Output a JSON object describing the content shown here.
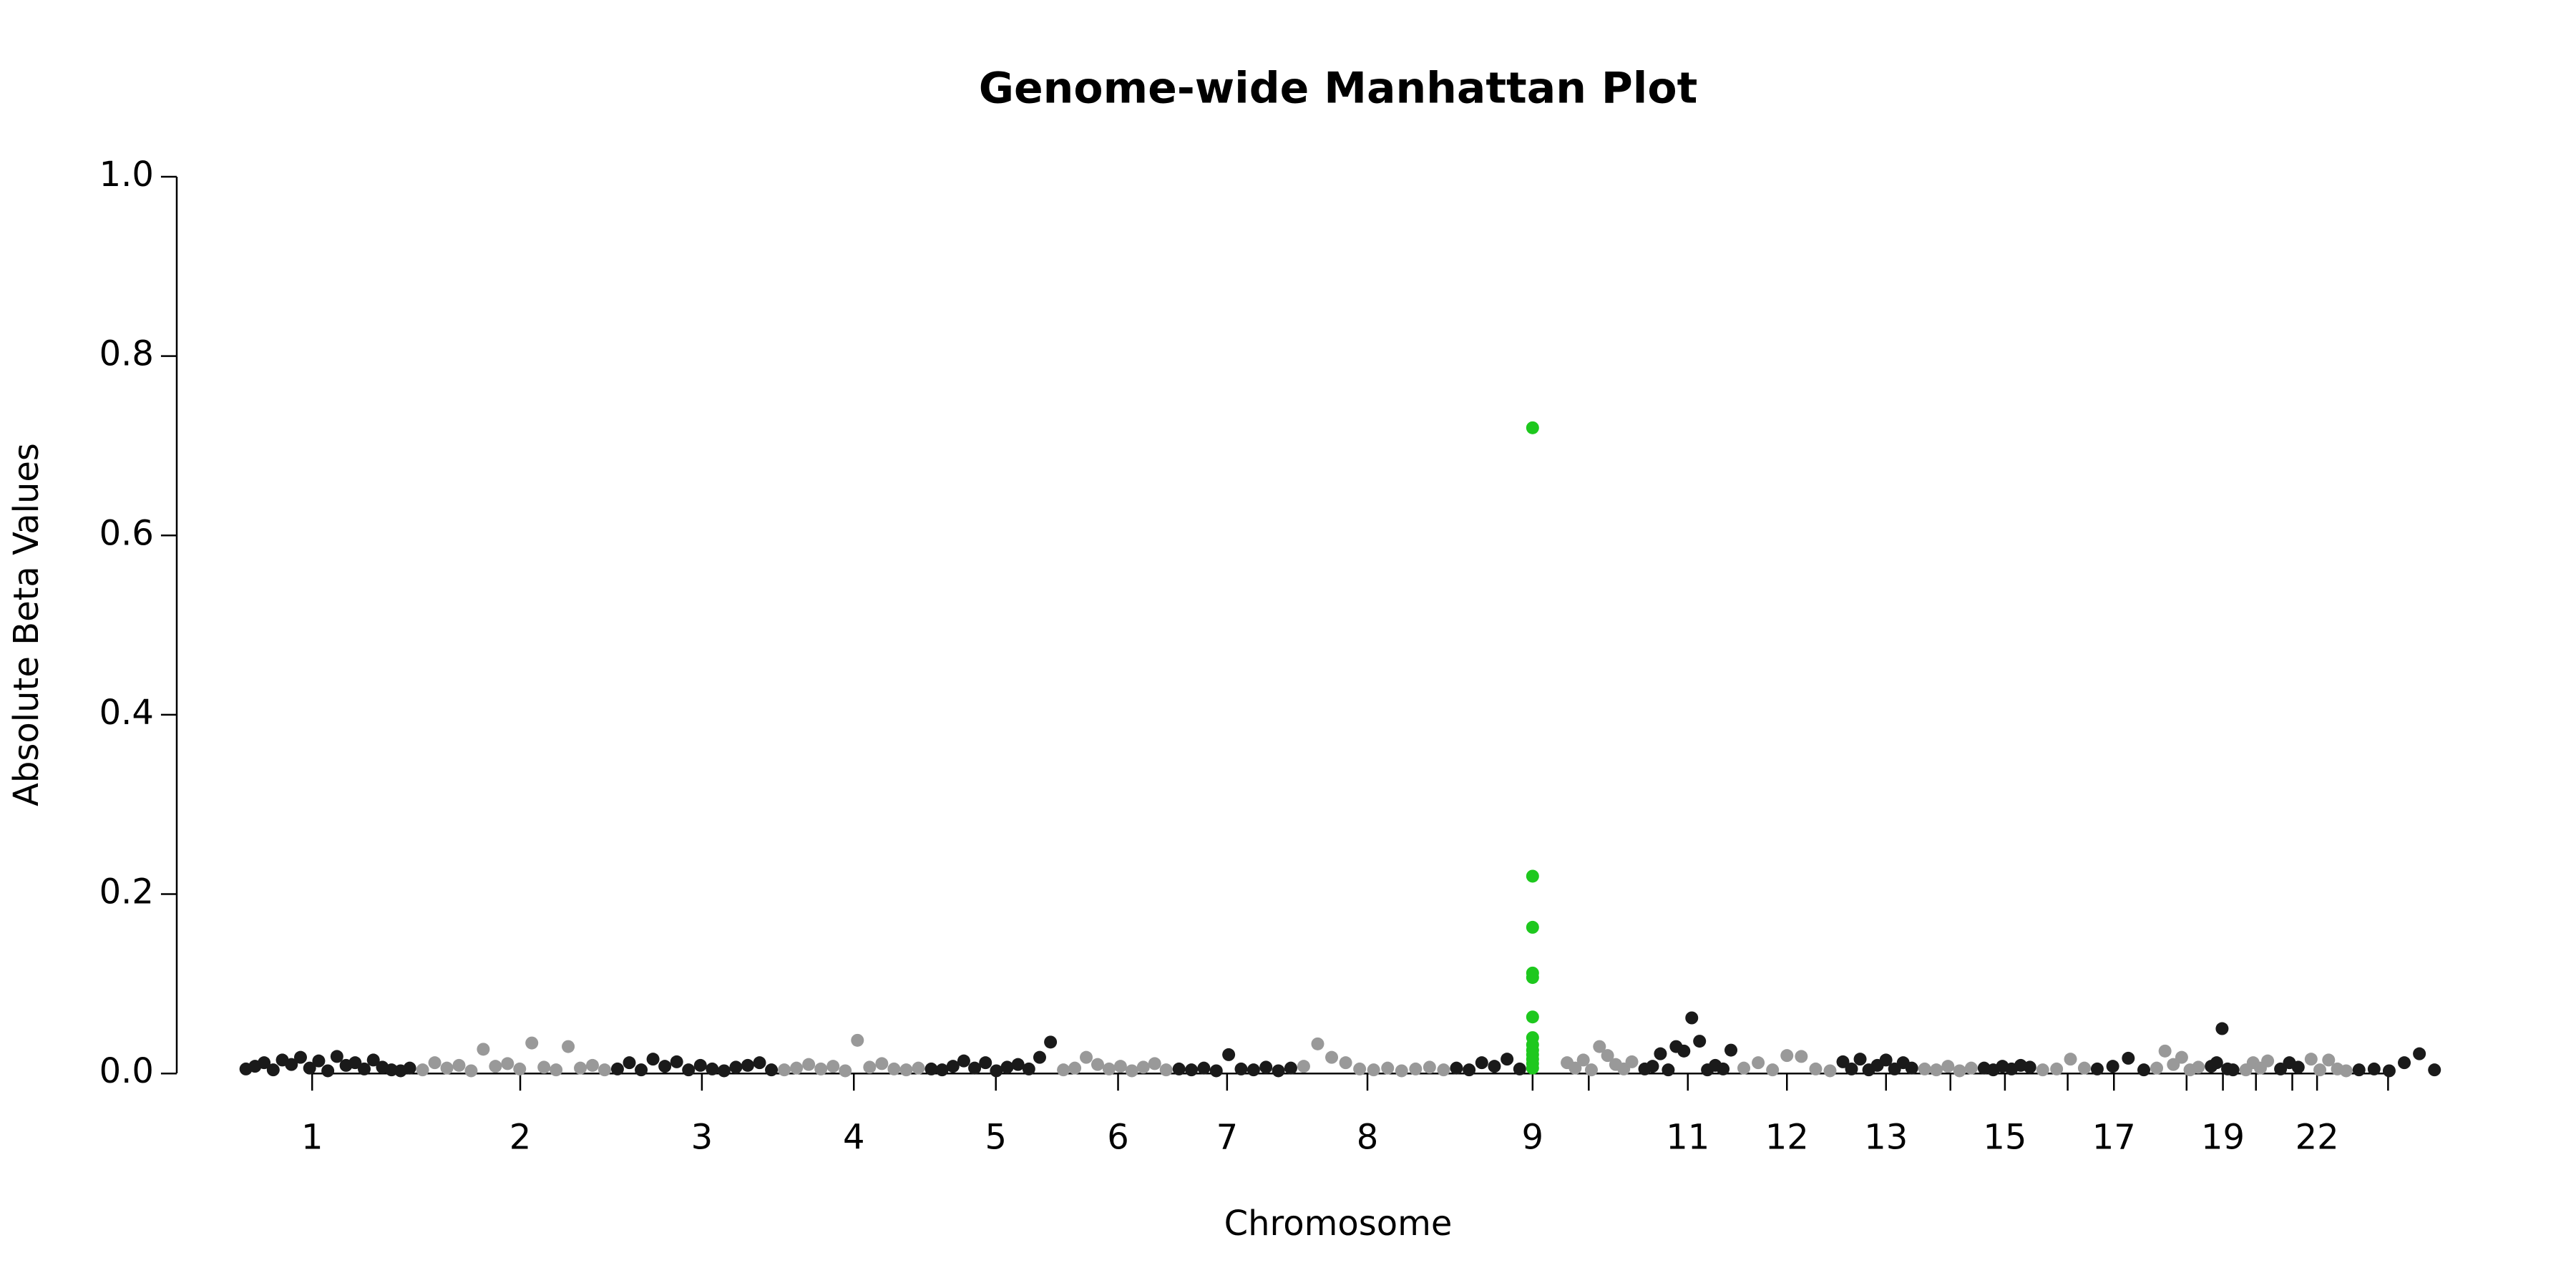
{
  "chart_data": {
    "type": "scatter",
    "title": "Genome-wide Manhattan Plot",
    "xlabel": "Chromosome",
    "ylabel": "Absolute Beta Values",
    "categories": [
      "1",
      "2",
      "3",
      "4",
      "5",
      "6",
      "7",
      "8",
      "9",
      null,
      "11",
      "12",
      "13",
      null,
      "15",
      null,
      "17",
      null,
      "19",
      null,
      null,
      "22",
      null
    ],
    "colors": [
      "#1a1a1a",
      "#999999"
    ],
    "values": [
      [
        0.005,
        0.008,
        0.012,
        0.004,
        0.015,
        0.01,
        0.018,
        0.006,
        0.014,
        0.003,
        0.019,
        0.009,
        0.012,
        0.005,
        0.015,
        0.007,
        0.004,
        0.003,
        0.006
      ],
      [
        0.004,
        0.012,
        0.006,
        0.009,
        0.003,
        0.027,
        0.008,
        0.011,
        0.005,
        0.034,
        0.007,
        0.004,
        0.03,
        0.006,
        0.009,
        0.004
      ],
      [
        0.005,
        0.012,
        0.004,
        0.016,
        0.008,
        0.013,
        0.004,
        0.009,
        0.005,
        0.003,
        0.007,
        0.009,
        0.012,
        0.004
      ],
      [
        0.004,
        0.006,
        0.01,
        0.005,
        0.008,
        0.003,
        0.037,
        0.007,
        0.011,
        0.005,
        0.004,
        0.006
      ],
      [
        0.005,
        0.004,
        0.008,
        0.014,
        0.006,
        0.012,
        0.003,
        0.007,
        0.01,
        0.005,
        0.018,
        0.035
      ],
      [
        0.004,
        0.006,
        0.018,
        0.01,
        0.005,
        0.008,
        0.003,
        0.007,
        0.011,
        0.004
      ],
      [
        0.005,
        0.004,
        0.006,
        0.003,
        0.021,
        0.005,
        0.004,
        0.007,
        0.003,
        0.006
      ],
      [
        0.008,
        0.033,
        0.018,
        0.012,
        0.005,
        0.004,
        0.006,
        0.003,
        0.005,
        0.007,
        0.004
      ],
      [
        0.006,
        0.004,
        0.012,
        0.008,
        0.016,
        0.005
      ],
      [
        0.012,
        0.006,
        0.015,
        0.004,
        0.03,
        0.02,
        0.01,
        0.005,
        0.013
      ],
      [
        0.005,
        0.008,
        0.022,
        0.004,
        0.03,
        0.025,
        0.062,
        0.036,
        0.004,
        0.009,
        0.005,
        0.026
      ],
      [
        0.006,
        0.012,
        0.004,
        0.02,
        0.019,
        0.005,
        0.003
      ],
      [
        0.013,
        0.005,
        0.016,
        0.004,
        0.009,
        0.015,
        0.005,
        0.012,
        0.006
      ],
      [
        0.005,
        0.004,
        0.008,
        0.003,
        0.006
      ],
      [
        0.006,
        0.004,
        0.008,
        0.005,
        0.009,
        0.007
      ],
      [
        0.004,
        0.005,
        0.016,
        0.006
      ],
      [
        0.005,
        0.008,
        0.017,
        0.004
      ],
      [
        0.006,
        0.025,
        0.01,
        0.018,
        0.004,
        0.007
      ],
      [
        0.008,
        0.012,
        0.05,
        0.005,
        0.004
      ],
      [
        0.004,
        0.012,
        0.006,
        0.014
      ],
      [
        0.005,
        0.012,
        0.007
      ],
      [
        0.016,
        0.004,
        0.015,
        0.005,
        0.003
      ],
      [
        0.004,
        0.005,
        0.003,
        0.012,
        0.022,
        0.004
      ]
    ],
    "highlight": {
      "category": 8,
      "color": "#1ec81e",
      "values": [
        0.72,
        0.22,
        0.163,
        0.112,
        0.107,
        0.063,
        0.04,
        0.032,
        0.026,
        0.021,
        0.016,
        0.011,
        0.006
      ]
    },
    "ylim": [
      0,
      1
    ],
    "yticks": [
      {
        "value": 0,
        "label": "0.0"
      },
      0.2,
      0.4,
      0.6,
      0.8,
      {
        "value": 1,
        "label": "1.0"
      }
    ]
  }
}
